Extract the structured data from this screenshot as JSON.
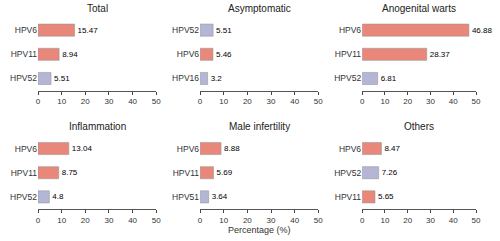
{
  "chart_data": [
    {
      "type": "bar",
      "orientation": "horizontal",
      "title": "Total",
      "categories": [
        "HPV6",
        "HPV11",
        "HPV52"
      ],
      "values": [
        15.47,
        8.94,
        5.51
      ],
      "colors": [
        "#E8877A",
        "#E8877A",
        "#B5B5D5"
      ],
      "xlim": [
        0,
        50
      ],
      "xticks": [
        0,
        10,
        20,
        30,
        40,
        50
      ],
      "grid": false,
      "data_labels": true
    },
    {
      "type": "bar",
      "orientation": "horizontal",
      "title": "Asymptomatic",
      "categories": [
        "HPV52",
        "HPV6",
        "HPV16"
      ],
      "values": [
        5.51,
        5.46,
        3.2
      ],
      "colors": [
        "#B5B5D5",
        "#E8877A",
        "#B5B5D5"
      ],
      "xlim": [
        0,
        50
      ],
      "xticks": [
        0,
        10,
        20,
        30,
        40,
        50
      ],
      "grid": false,
      "data_labels": true
    },
    {
      "type": "bar",
      "orientation": "horizontal",
      "title": "Anogenital warts",
      "categories": [
        "HPV6",
        "HPV11",
        "HPV52"
      ],
      "values": [
        46.88,
        28.37,
        6.81
      ],
      "colors": [
        "#E8877A",
        "#E8877A",
        "#B5B5D5"
      ],
      "xlim": [
        0,
        50
      ],
      "xticks": [
        0,
        10,
        20,
        30,
        40,
        50
      ],
      "grid": false,
      "data_labels": true
    },
    {
      "type": "bar",
      "orientation": "horizontal",
      "title": "Inflammation",
      "categories": [
        "HPV6",
        "HPV11",
        "HPV52"
      ],
      "values": [
        13.04,
        8.75,
        4.8
      ],
      "colors": [
        "#E8877A",
        "#E8877A",
        "#B5B5D5"
      ],
      "xlim": [
        0,
        50
      ],
      "xticks": [
        0,
        10,
        20,
        30,
        40,
        50
      ],
      "grid": false,
      "data_labels": true
    },
    {
      "type": "bar",
      "orientation": "horizontal",
      "title": "Male infertility",
      "categories": [
        "HPV6",
        "HPV11",
        "HPV51"
      ],
      "values": [
        8.88,
        5.69,
        3.64
      ],
      "colors": [
        "#E8877A",
        "#E8877A",
        "#B5B5D5"
      ],
      "xlim": [
        0,
        50
      ],
      "xticks": [
        0,
        10,
        20,
        30,
        40,
        50
      ],
      "grid": false,
      "data_labels": true,
      "xlabel": "Percentage (%)"
    },
    {
      "type": "bar",
      "orientation": "horizontal",
      "title": "Others",
      "categories": [
        "HPV6",
        "HPV52",
        "HPV11"
      ],
      "values": [
        8.47,
        7.26,
        5.65
      ],
      "colors": [
        "#E8877A",
        "#B5B5D5",
        "#E8877A"
      ],
      "xlim": [
        0,
        50
      ],
      "xticks": [
        0,
        10,
        20,
        30,
        40,
        50
      ],
      "grid": false,
      "data_labels": true
    }
  ]
}
